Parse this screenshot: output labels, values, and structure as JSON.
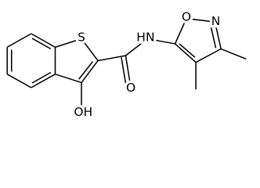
{
  "labels": {
    "sulfur": "S",
    "amide_nh": "HN",
    "carbonyl_o": "O",
    "hydroxyl": "OH",
    "ring_o": "O",
    "ring_n": "N"
  }
}
